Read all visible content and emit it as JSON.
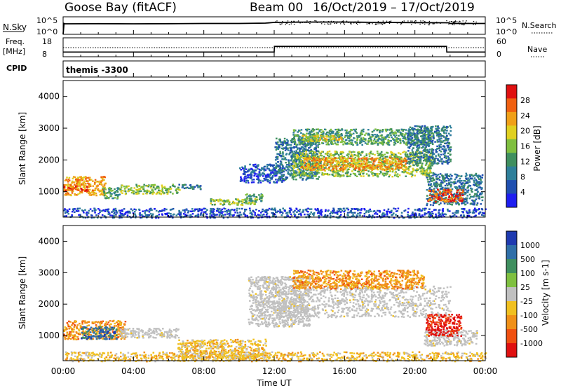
{
  "header": {
    "station": "Goose Bay (fitACF)",
    "beam": "Beam 00",
    "date_range": "16/Oct/2019 – 17/Oct/2019"
  },
  "time_axis": {
    "label": "Time UT",
    "ticks": [
      "00:00",
      "04:00",
      "08:00",
      "12:00",
      "16:00",
      "20:00",
      "00:00"
    ],
    "range_hours": [
      0,
      24
    ]
  },
  "noise_panel": {
    "left_label": "N.Sky",
    "left_ticks": [
      "10^5",
      "10^0"
    ],
    "right_ticks": [
      "10^5",
      "10^0"
    ],
    "right_label": "N.Search"
  },
  "freq_panel": {
    "left_label_1": "Freq.",
    "left_label_2": "[MHz]",
    "left_ticks": [
      "18",
      "8"
    ],
    "right_ticks": [
      "60",
      "0"
    ],
    "right_label": "Nave",
    "cpid_label": "CPID",
    "cpid_text": "themis -3300"
  },
  "chart_data": [
    {
      "type": "line",
      "name": "noise",
      "x_hours": [
        0,
        0.05,
        0.1,
        2,
        4,
        6,
        8,
        10,
        11.5,
        12,
        14,
        16,
        18,
        20,
        21.9,
        22,
        24
      ],
      "y_level_fraction": [
        0.0,
        0.62,
        0.6,
        0.61,
        0.6,
        0.61,
        0.62,
        0.62,
        0.64,
        0.68,
        0.7,
        0.7,
        0.68,
        0.67,
        0.66,
        0.62,
        0.62
      ]
    },
    {
      "type": "line",
      "name": "frequency_and_nave",
      "x_hours": [
        0,
        12,
        12.01,
        21.8,
        21.81,
        24
      ],
      "y_mhz": [
        10.5,
        10.5,
        13.5,
        13.5,
        10.5,
        10.5
      ]
    },
    {
      "type": "heatmap",
      "panel": "power",
      "xlabel": "Time UT",
      "ylabel": "Slant Range [km]",
      "xlim": [
        0,
        24
      ],
      "ylim": [
        200,
        4500
      ],
      "y_ticks": [
        1000,
        2000,
        3000,
        4000
      ],
      "colorbar": {
        "label": "Power [dB]",
        "ticks": [
          4,
          8,
          12,
          16,
          20,
          24,
          28
        ],
        "range": [
          0,
          32
        ],
        "colors": [
          "#1e1ef0",
          "#1f4fb0",
          "#2e7f9a",
          "#3f8f5f",
          "#7fbf3f",
          "#e0d020",
          "#f0a018",
          "#f06010",
          "#e01010"
        ]
      },
      "regions": [
        {
          "t0": 0.0,
          "t1": 2.4,
          "r0": 900,
          "r1": 1500,
          "value": 22
        },
        {
          "t0": 0.0,
          "t1": 1.5,
          "r0": 1050,
          "r1": 1250,
          "value": 28
        },
        {
          "t0": 2.2,
          "t1": 3.2,
          "r0": 800,
          "r1": 1150,
          "value": 12
        },
        {
          "t0": 3.2,
          "t1": 6.6,
          "r0": 950,
          "r1": 1250,
          "value": 14
        },
        {
          "t0": 6.5,
          "t1": 7.8,
          "r0": 1100,
          "r1": 1250,
          "value": 6
        },
        {
          "t0": 8.3,
          "t1": 11.0,
          "r0": 600,
          "r1": 800,
          "value": 16
        },
        {
          "t0": 10.3,
          "t1": 11.3,
          "r0": 700,
          "r1": 950,
          "value": 10
        },
        {
          "t0": 10.0,
          "t1": 12.5,
          "r0": 1300,
          "r1": 1900,
          "value": 4
        },
        {
          "t0": 12.0,
          "t1": 14.5,
          "r0": 1400,
          "r1": 2700,
          "value": 8
        },
        {
          "t0": 13.0,
          "t1": 21.0,
          "r0": 1500,
          "r1": 2300,
          "value": 16
        },
        {
          "t0": 13.5,
          "t1": 19.5,
          "r0": 1700,
          "r1": 2100,
          "value": 22
        },
        {
          "t0": 13.0,
          "t1": 21.0,
          "r0": 2500,
          "r1": 3000,
          "value": 12
        },
        {
          "t0": 13.5,
          "t1": 16.0,
          "r0": 2600,
          "r1": 2800,
          "value": 18
        },
        {
          "t0": 19.5,
          "t1": 22.0,
          "r0": 1900,
          "r1": 3100,
          "value": 6
        },
        {
          "t0": 20.6,
          "t1": 23.8,
          "r0": 600,
          "r1": 1600,
          "value": 8
        },
        {
          "t0": 20.7,
          "t1": 22.7,
          "r0": 700,
          "r1": 1100,
          "value": 28
        },
        {
          "t0": 0.0,
          "t1": 24.0,
          "r0": 200,
          "r1": 500,
          "value": 4
        }
      ]
    },
    {
      "type": "heatmap",
      "panel": "velocity",
      "xlabel": "Time UT",
      "ylabel": "Slant Range [km]",
      "xlim": [
        0,
        24
      ],
      "ylim": [
        200,
        4500
      ],
      "y_ticks": [
        1000,
        2000,
        3000,
        4000
      ],
      "colorbar": {
        "label": "Velocity [m s-1]",
        "ticks": [
          "1000",
          "500",
          "100",
          "25",
          "-25",
          "-100",
          "-500",
          "-1000"
        ],
        "colors": [
          "#1e3ab0",
          "#2f6fa8",
          "#3f8f5f",
          "#7fc040",
          "#c0c0c0",
          "#f0c020",
          "#f09018",
          "#f05010",
          "#e01010"
        ]
      },
      "regions": [
        {
          "t0": 0.0,
          "t1": 3.5,
          "r0": 900,
          "r1": 1500,
          "value": "-500"
        },
        {
          "t0": 1.0,
          "t1": 3.0,
          "r0": 900,
          "r1": 1300,
          "value": "500"
        },
        {
          "t0": 3.2,
          "t1": 6.6,
          "r0": 950,
          "r1": 1250,
          "value": "25"
        },
        {
          "t0": 6.5,
          "t1": 11.5,
          "r0": 250,
          "r1": 900,
          "value": "-100"
        },
        {
          "t0": 10.5,
          "t1": 14.0,
          "r0": 1300,
          "r1": 2900,
          "value": "25"
        },
        {
          "t0": 12.0,
          "t1": 22.0,
          "r0": 1600,
          "r1": 2600,
          "value": "25"
        },
        {
          "t0": 13.0,
          "t1": 20.5,
          "r0": 2500,
          "r1": 3100,
          "value": "-500"
        },
        {
          "t0": 20.5,
          "t1": 23.5,
          "r0": 700,
          "r1": 1200,
          "value": "25"
        },
        {
          "t0": 20.6,
          "t1": 22.6,
          "r0": 1000,
          "r1": 1700,
          "value": "-1000"
        },
        {
          "t0": 0.0,
          "t1": 24.0,
          "r0": 200,
          "r1": 500,
          "value": "-100"
        }
      ]
    }
  ]
}
